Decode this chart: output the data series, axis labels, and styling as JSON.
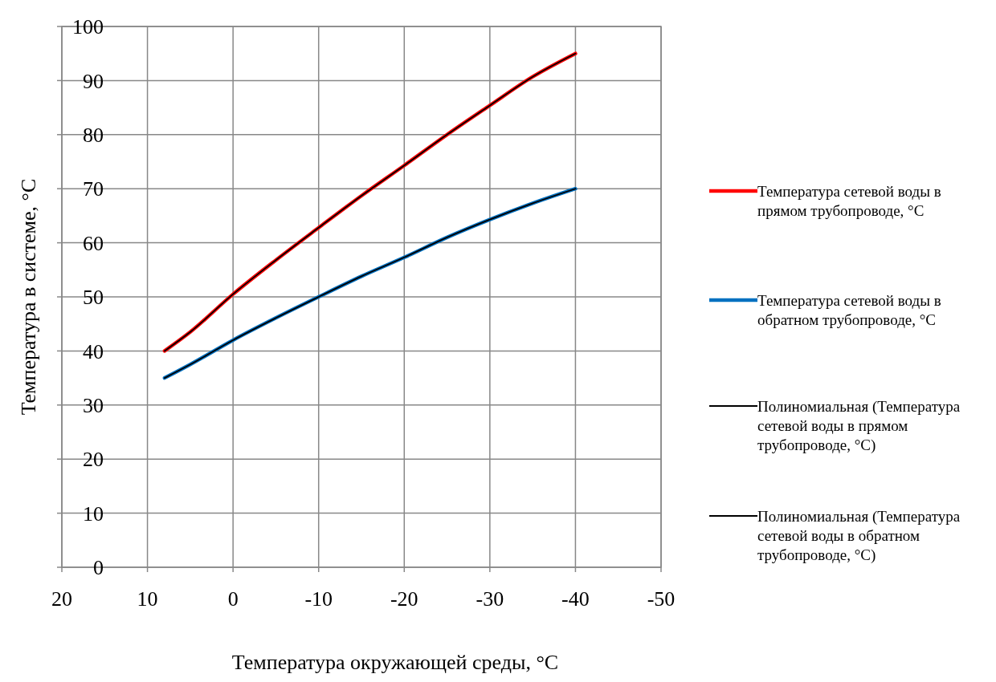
{
  "chart_data": {
    "type": "line",
    "xlabel": "Температура окружающей среды, °C",
    "ylabel": "Температура в системе, °C",
    "xlim": [
      20,
      -50
    ],
    "xticks": [
      20,
      10,
      0,
      -10,
      -20,
      -30,
      -40,
      -50
    ],
    "ylim": [
      0,
      100
    ],
    "yticks": [
      0,
      10,
      20,
      30,
      40,
      50,
      60,
      70,
      80,
      90,
      100
    ],
    "grid": true,
    "legend": "right",
    "line_style": "solid",
    "marker": "none",
    "series": [
      {
        "name": "Температура сетевой воды в прямом трубопроводе, °C",
        "color": "#ff0000",
        "x": [
          8,
          5,
          0,
          -5,
          -10,
          -15,
          -20,
          -25,
          -30,
          -35,
          -40
        ],
        "values": [
          40,
          43.5,
          50.5,
          56.8,
          62.8,
          68.7,
          74.3,
          80,
          85.4,
          90.7,
          95
        ]
      },
      {
        "name": "Температура сетевой воды в обратном трубопроводе, °C",
        "color": "#0070c0",
        "x": [
          8,
          5,
          0,
          -5,
          -10,
          -15,
          -20,
          -25,
          -30,
          -35,
          -40
        ],
        "values": [
          35,
          37.5,
          42,
          46.1,
          50,
          53.8,
          57.3,
          61,
          64.3,
          67.3,
          70
        ]
      },
      {
        "name": "Полиномиальная (Температура сетевой воды в прямом трубопроводе, °C)",
        "color": "#000000",
        "x": [
          8,
          5,
          0,
          -5,
          -10,
          -15,
          -20,
          -25,
          -30,
          -35,
          -40
        ],
        "values": [
          40,
          43.5,
          50.5,
          56.8,
          62.8,
          68.7,
          74.3,
          80,
          85.4,
          90.7,
          95
        ]
      },
      {
        "name": "Полиномиальная (Температура сетевой воды в обратном трубопроводе, °C)",
        "color": "#000000",
        "x": [
          8,
          5,
          0,
          -5,
          -10,
          -15,
          -20,
          -25,
          -30,
          -35,
          -40
        ],
        "values": [
          35,
          37.5,
          42,
          46.1,
          50,
          53.8,
          57.3,
          61,
          64.3,
          67.3,
          70
        ]
      }
    ]
  }
}
